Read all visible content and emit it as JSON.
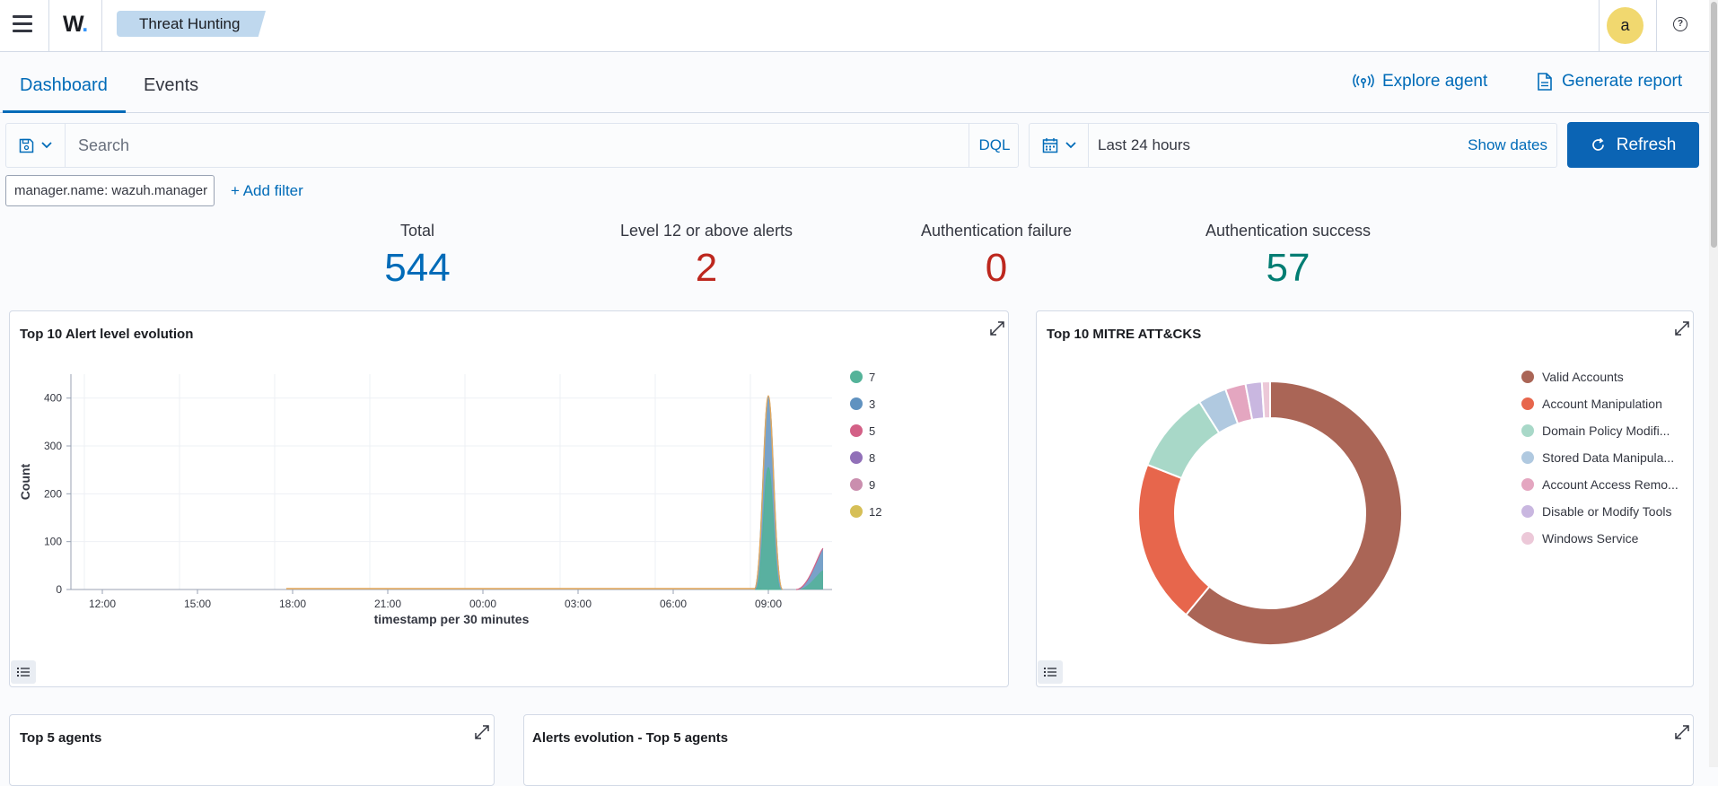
{
  "header": {
    "logo": "W",
    "breadcrumb": "Threat Hunting",
    "avatar_letter": "a",
    "help_glyph": "?"
  },
  "tabs": [
    {
      "label": "Dashboard",
      "active": true
    },
    {
      "label": "Events",
      "active": false
    }
  ],
  "actions": {
    "explore_agent": "Explore agent",
    "generate_report": "Generate report"
  },
  "search": {
    "placeholder": "Search",
    "language": "DQL"
  },
  "datepicker": {
    "range": "Last 24 hours",
    "show_dates": "Show dates",
    "refresh": "Refresh"
  },
  "filters": {
    "pill": "manager.name: wazuh.manager",
    "add_filter": "+ Add filter"
  },
  "stats": [
    {
      "label": "Total",
      "value": "544",
      "color": "#006bb8"
    },
    {
      "label": "Level 12 or above alerts",
      "value": "2",
      "color": "#bd271e"
    },
    {
      "label": "Authentication failure",
      "value": "0",
      "color": "#bd271e"
    },
    {
      "label": "Authentication success",
      "value": "57",
      "color": "#017d73"
    }
  ],
  "panels": {
    "alert_level": "Top 10 Alert level evolution",
    "mitre": "Top 10 MITRE ATT&CKS",
    "top_agents": "Top 5 agents",
    "alerts_evolution": "Alerts evolution - Top 5 agents"
  },
  "chart_data": [
    {
      "type": "area",
      "title": "Top 10 Alert level evolution",
      "xlabel": "timestamp per 30 minutes",
      "ylabel": "Count",
      "ylim": [
        0,
        450
      ],
      "yticks": [
        0,
        100,
        200,
        300,
        400
      ],
      "xticks": [
        "12:00",
        "15:00",
        "18:00",
        "21:00",
        "00:00",
        "03:00",
        "06:00",
        "09:00"
      ],
      "legend_position": "right",
      "stacked": true,
      "series": [
        {
          "name": "7",
          "color": "#54b399",
          "peaks": [
            {
              "time": "09:00",
              "value": 255
            },
            {
              "time": "10:30",
              "value": 40
            }
          ]
        },
        {
          "name": "3",
          "color": "#6092c0",
          "peaks": [
            {
              "time": "09:00",
              "value": 148
            },
            {
              "time": "10:30",
              "value": 42
            }
          ]
        },
        {
          "name": "5",
          "color": "#d36086",
          "peaks": [
            {
              "time": "09:00",
              "value": 2
            },
            {
              "time": "10:30",
              "value": 4
            }
          ]
        },
        {
          "name": "8",
          "color": "#9170b8",
          "peaks": []
        },
        {
          "name": "9",
          "color": "#ca8eae",
          "peaks": []
        },
        {
          "name": "12",
          "color": "#d6bf57",
          "peaks": [
            {
              "time": "09:00",
              "value": 2
            }
          ]
        }
      ]
    },
    {
      "type": "pie",
      "title": "Top 10 MITRE ATT&CKS",
      "donut": true,
      "legend_position": "right",
      "slices": [
        {
          "label": "Valid Accounts",
          "value": 61,
          "color": "#aa6556"
        },
        {
          "label": "Account Manipulation",
          "value": 20,
          "color": "#e7664c"
        },
        {
          "label": "Domain Policy Modifi...",
          "value": 10,
          "color": "#a8d8c8"
        },
        {
          "label": "Stored Data Manipula...",
          "value": 3.5,
          "color": "#b0c9e0"
        },
        {
          "label": "Account Access Remo...",
          "value": 2.5,
          "color": "#e4a6c0"
        },
        {
          "label": "Disable or Modify Tools",
          "value": 2,
          "color": "#c9b7e0"
        },
        {
          "label": "Windows Service",
          "value": 1,
          "color": "#ecc8d8"
        }
      ]
    }
  ]
}
